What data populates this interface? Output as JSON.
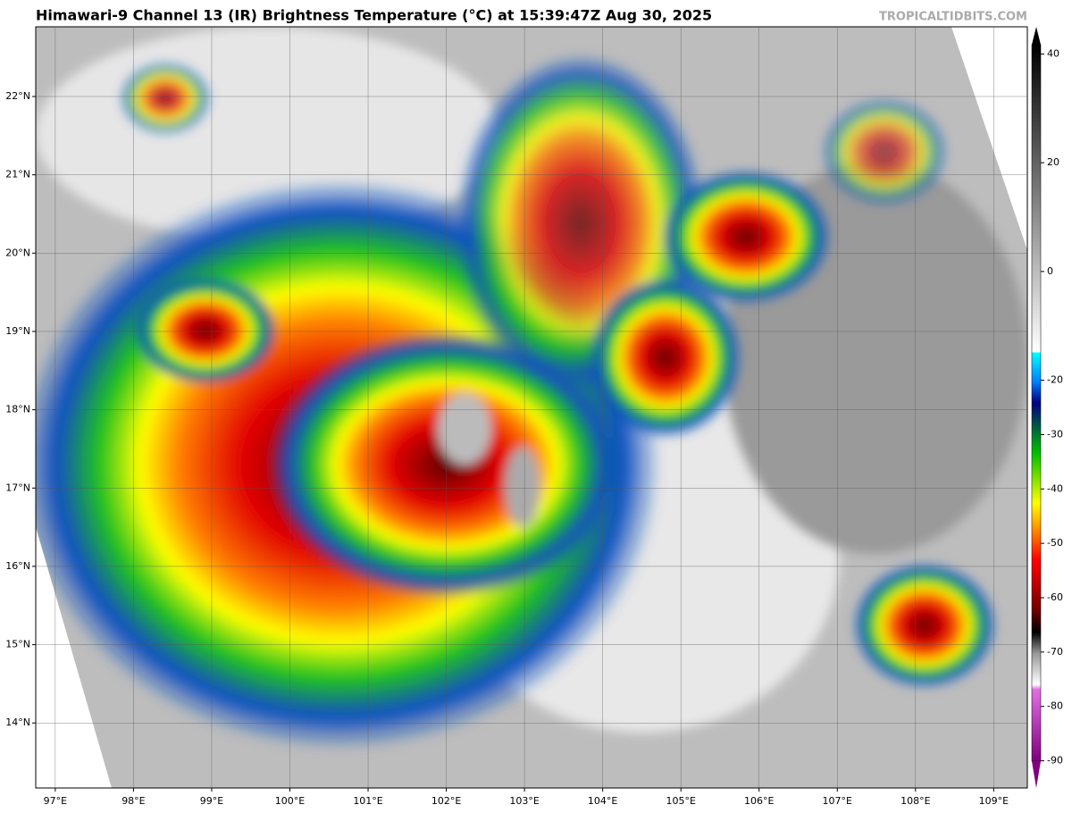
{
  "header": {
    "title": "Himawari-9 Channel 13 (IR) Brightness Temperature (°C) at 15:39:47Z Aug 30, 2025",
    "credit": "TROPICALTIDBITS.COM"
  },
  "map": {
    "lonlim": [
      96.75,
      109.43
    ],
    "latlim": [
      13.17,
      22.89
    ],
    "lon_ticks": [
      {
        "value": 97,
        "label": "97°E"
      },
      {
        "value": 98,
        "label": "98°E"
      },
      {
        "value": 99,
        "label": "99°E"
      },
      {
        "value": 100,
        "label": "100°E"
      },
      {
        "value": 101,
        "label": "101°E"
      },
      {
        "value": 102,
        "label": "102°E"
      },
      {
        "value": 103,
        "label": "103°E"
      },
      {
        "value": 104,
        "label": "104°E"
      },
      {
        "value": 105,
        "label": "105°E"
      },
      {
        "value": 106,
        "label": "106°E"
      },
      {
        "value": 107,
        "label": "107°E"
      },
      {
        "value": 108,
        "label": "108°E"
      },
      {
        "value": 109,
        "label": "109°E"
      }
    ],
    "lat_ticks": [
      {
        "value": 22,
        "label": "22°N"
      },
      {
        "value": 21,
        "label": "21°N"
      },
      {
        "value": 20,
        "label": "20°N"
      },
      {
        "value": 19,
        "label": "19°N"
      },
      {
        "value": 18,
        "label": "18°N"
      },
      {
        "value": 17,
        "label": "17°N"
      },
      {
        "value": 16,
        "label": "16°N"
      },
      {
        "value": 15,
        "label": "15°N"
      },
      {
        "value": 14,
        "label": "14°N"
      }
    ]
  },
  "colorbar": {
    "lim": [
      -95,
      45
    ],
    "ticks": [
      40,
      20,
      0,
      -20,
      -30,
      -40,
      -50,
      -60,
      -70,
      -80,
      -90
    ]
  }
}
